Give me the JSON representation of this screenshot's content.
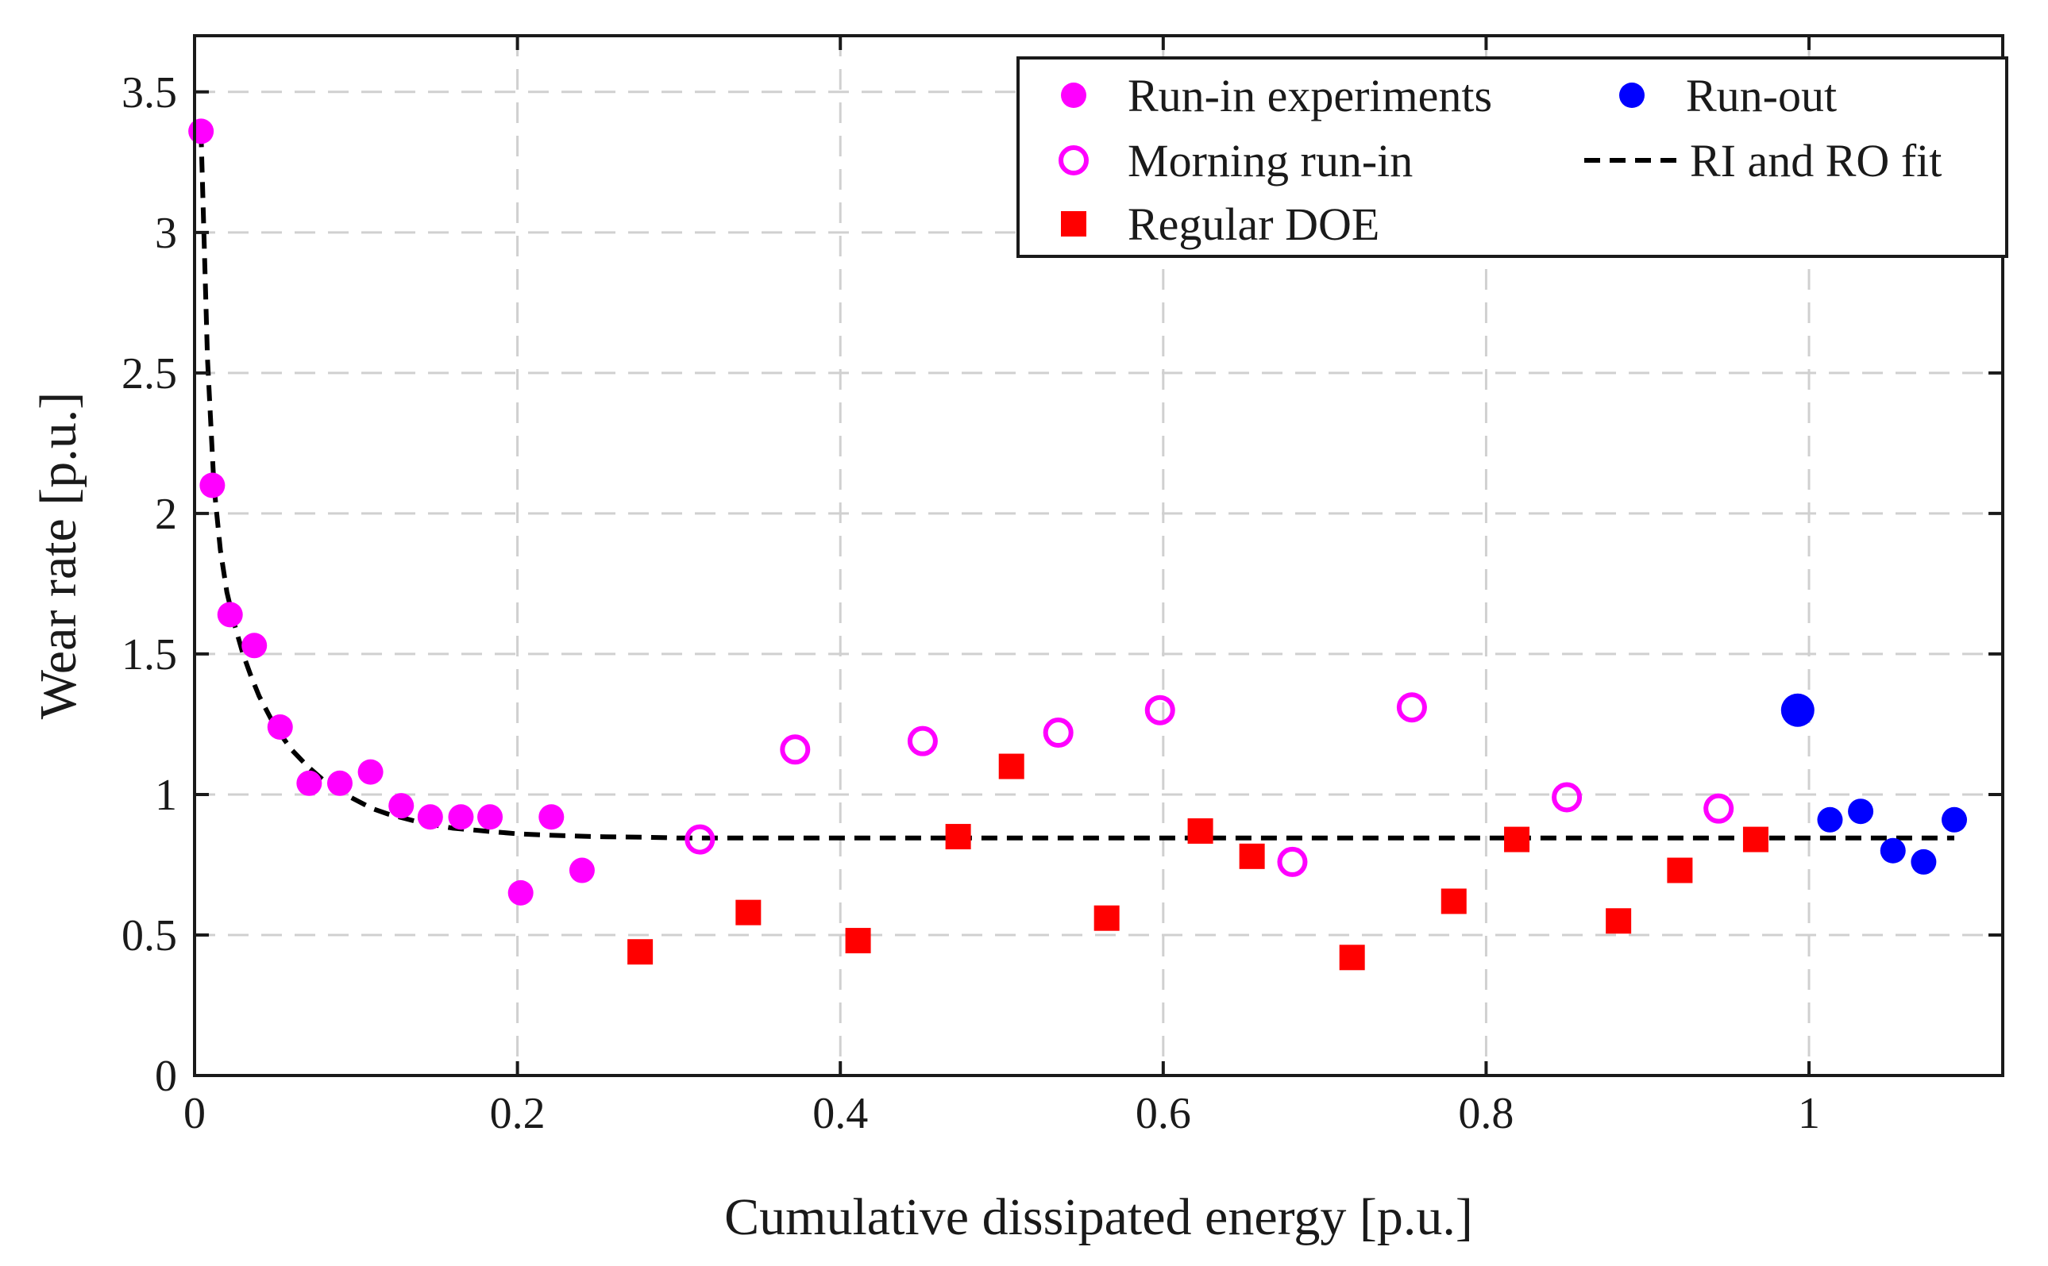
{
  "chart_data": {
    "type": "scatter",
    "title": "",
    "xlabel": "Cumulative dissipated energy [p.u.]",
    "ylabel": "Wear rate [p.u.]",
    "xlim": [
      0,
      1.12
    ],
    "ylim": [
      0,
      3.7
    ],
    "x_ticks": [
      0,
      0.2,
      0.4,
      0.6,
      0.8,
      1
    ],
    "x_tick_labels": [
      "0",
      "0.2",
      "0.4",
      "0.6",
      "0.8",
      "1"
    ],
    "y_ticks": [
      0,
      0.5,
      1,
      1.5,
      2,
      2.5,
      3,
      3.5
    ],
    "y_tick_labels": [
      "0",
      "0.5",
      "1",
      "1.5",
      "2",
      "2.5",
      "3",
      "3.5"
    ],
    "grid": true,
    "legend_position": "top-right",
    "series": [
      {
        "name": "Run-in experiments",
        "marker": "filled-circle",
        "color": "#ff00ff",
        "x": [
          0.004,
          0.011,
          0.022,
          0.037,
          0.053,
          0.071,
          0.09,
          0.109,
          0.128,
          0.146,
          0.165,
          0.183,
          0.202,
          0.221,
          0.24
        ],
        "y": [
          3.36,
          2.1,
          1.64,
          1.53,
          1.24,
          1.04,
          1.04,
          1.08,
          0.96,
          0.92,
          0.92,
          0.92,
          0.65,
          0.92,
          0.73
        ]
      },
      {
        "name": "Morning run-in",
        "marker": "open-circle",
        "color": "#ff00ff",
        "x": [
          0.313,
          0.372,
          0.451,
          0.535,
          0.598,
          0.68,
          0.754,
          0.85,
          0.944
        ],
        "y": [
          0.84,
          1.16,
          1.19,
          1.22,
          1.3,
          0.76,
          1.31,
          0.99,
          0.95
        ]
      },
      {
        "name": "Regular DOE",
        "marker": "filled-square",
        "color": "#ff0000",
        "x": [
          0.276,
          0.343,
          0.411,
          0.473,
          0.506,
          0.565,
          0.623,
          0.655,
          0.717,
          0.78,
          0.819,
          0.882,
          0.92,
          0.967
        ],
        "y": [
          0.44,
          0.58,
          0.48,
          0.85,
          1.1,
          0.56,
          0.87,
          0.78,
          0.42,
          0.62,
          0.84,
          0.55,
          0.73,
          0.84
        ]
      },
      {
        "name": "Run-out",
        "marker": "filled-circle",
        "color": "#0000ff",
        "x": [
          0.993,
          1.013,
          1.032,
          1.052,
          1.071,
          1.09
        ],
        "y": [
          1.3,
          0.91,
          0.94,
          0.8,
          0.76,
          0.91
        ]
      },
      {
        "name": "RI and RO fit",
        "marker": "dashed-line",
        "color": "#000000",
        "x": [
          0.004,
          0.008,
          0.012,
          0.016,
          0.02,
          0.025,
          0.03,
          0.035,
          0.04,
          0.05,
          0.06,
          0.07,
          0.08,
          0.09,
          0.1,
          0.11,
          0.12,
          0.13,
          0.14,
          0.15,
          0.16,
          0.18,
          0.2,
          0.22,
          0.25,
          0.28,
          0.3,
          0.35,
          0.4,
          0.5,
          0.6,
          0.7,
          0.8,
          0.9,
          1.0,
          1.09
        ],
        "y": [
          3.36,
          2.55,
          2.1,
          1.87,
          1.72,
          1.6,
          1.5,
          1.42,
          1.35,
          1.24,
          1.16,
          1.1,
          1.05,
          1.01,
          0.98,
          0.95,
          0.93,
          0.915,
          0.9,
          0.89,
          0.88,
          0.87,
          0.86,
          0.855,
          0.85,
          0.848,
          0.845,
          0.845,
          0.845,
          0.845,
          0.845,
          0.845,
          0.845,
          0.845,
          0.845,
          0.845
        ]
      }
    ]
  }
}
